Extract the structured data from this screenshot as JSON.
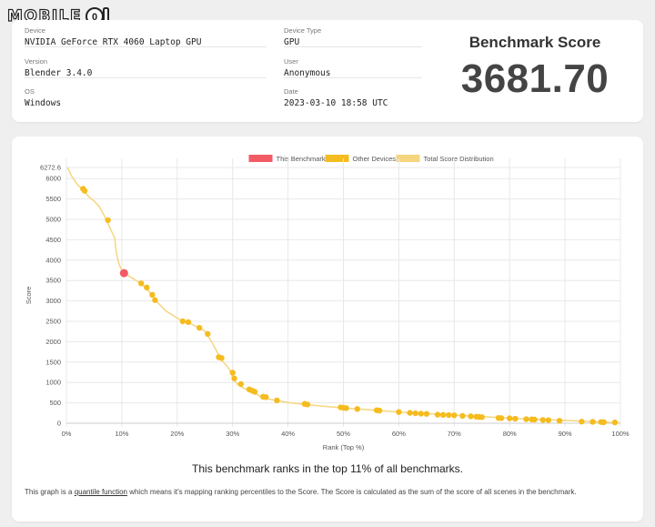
{
  "logo": {
    "text": "MOBILE",
    "icon": "mobile01-logo"
  },
  "info": {
    "device_label": "Device",
    "device_value": "NVIDIA GeForce RTX 4060 Laptop GPU",
    "version_label": "Version",
    "version_value": "Blender 3.4.0",
    "os_label": "OS",
    "os_value": "Windows",
    "device_type_label": "Device Type",
    "device_type_value": "GPU",
    "user_label": "User",
    "user_value": "Anonymous",
    "date_label": "Date",
    "date_value": "2023-03-10 18:58 UTC"
  },
  "score": {
    "title": "Benchmark Score",
    "value": "3681.70"
  },
  "rank_text": "This benchmark ranks in the top 11% of all benchmarks.",
  "footnote": {
    "before": "This graph is a ",
    "link": "quantile function",
    "after": " which means it's mapping ranking percentiles to the Score. The Score is calculated as the sum of the score of all scenes in the benchmark."
  },
  "colors": {
    "this": "#f25b64",
    "other": "#f5bc1f",
    "dist": "#f5d57e"
  },
  "chart_data": {
    "type": "scatter",
    "xlabel": "Rank (Top %)",
    "ylabel": "Score",
    "xlim": [
      0,
      100
    ],
    "ylim": [
      0,
      6272.6
    ],
    "x_ticks": [
      "0%",
      "10%",
      "20%",
      "30%",
      "40%",
      "50%",
      "60%",
      "70%",
      "80%",
      "90%",
      "100%"
    ],
    "y_ticks": [
      "0",
      "500",
      "1000",
      "1500",
      "2000",
      "2500",
      "3000",
      "3500",
      "4000",
      "4500",
      "5000",
      "5500",
      "6000",
      "6272.6"
    ],
    "legend": [
      "This Benchmark",
      "Other Devices",
      "Total Score Distribution"
    ],
    "legend_position": "top",
    "grid": true,
    "this_benchmark": {
      "x": 10.4,
      "y": 3681.7
    },
    "distribution": [
      [
        0.2,
        6272.6
      ],
      [
        1,
        6050
      ],
      [
        2,
        5850
      ],
      [
        3,
        5720
      ],
      [
        4,
        5560
      ],
      [
        5,
        5450
      ],
      [
        6,
        5300
      ],
      [
        7,
        5050
      ],
      [
        8,
        4750
      ],
      [
        8.7,
        4550
      ],
      [
        9,
        4200
      ],
      [
        9.4,
        3950
      ],
      [
        9.8,
        3800
      ],
      [
        10.4,
        3681.7
      ],
      [
        12,
        3550
      ],
      [
        13.5,
        3420
      ],
      [
        14,
        3360
      ],
      [
        15,
        3220
      ],
      [
        16,
        3020
      ],
      [
        18,
        2750
      ],
      [
        20,
        2580
      ],
      [
        21,
        2500
      ],
      [
        22,
        2480
      ],
      [
        23,
        2400
      ],
      [
        24,
        2340
      ],
      [
        25,
        2260
      ],
      [
        26,
        2050
      ],
      [
        27,
        1800
      ],
      [
        28,
        1550
      ],
      [
        29,
        1400
      ],
      [
        29.8,
        1240
      ],
      [
        30,
        1100
      ],
      [
        31,
        940
      ],
      [
        32,
        860
      ],
      [
        33,
        800
      ],
      [
        34,
        740
      ],
      [
        35,
        660
      ],
      [
        37,
        580
      ],
      [
        40,
        510
      ],
      [
        43,
        460
      ],
      [
        47,
        410
      ],
      [
        50,
        375
      ],
      [
        55,
        325
      ],
      [
        60,
        275
      ],
      [
        65,
        235
      ],
      [
        70,
        200
      ],
      [
        75,
        160
      ],
      [
        80,
        125
      ],
      [
        85,
        95
      ],
      [
        90,
        70
      ],
      [
        95,
        40
      ],
      [
        100,
        10
      ]
    ],
    "other_devices": [
      [
        3,
        5750
      ],
      [
        3.3,
        5700
      ],
      [
        7.5,
        4980
      ],
      [
        13.5,
        3430
      ],
      [
        14.5,
        3330
      ],
      [
        15.5,
        3150
      ],
      [
        16,
        3020
      ],
      [
        21,
        2500
      ],
      [
        22,
        2480
      ],
      [
        24,
        2340
      ],
      [
        25.5,
        2190
      ],
      [
        27.5,
        1620
      ],
      [
        28,
        1600
      ],
      [
        30,
        1240
      ],
      [
        30.3,
        1100
      ],
      [
        31.5,
        960
      ],
      [
        33,
        830
      ],
      [
        33.5,
        800
      ],
      [
        34,
        770
      ],
      [
        35.5,
        650
      ],
      [
        36,
        640
      ],
      [
        38,
        560
      ],
      [
        43,
        475
      ],
      [
        43.5,
        460
      ],
      [
        49.5,
        390
      ],
      [
        50,
        380
      ],
      [
        50.5,
        370
      ],
      [
        52.5,
        350
      ],
      [
        56,
        320
      ],
      [
        56.5,
        310
      ],
      [
        60,
        275
      ],
      [
        62,
        255
      ],
      [
        63,
        245
      ],
      [
        64,
        235
      ],
      [
        65,
        230
      ],
      [
        67,
        210
      ],
      [
        68,
        205
      ],
      [
        69,
        200
      ],
      [
        70,
        195
      ],
      [
        71.5,
        180
      ],
      [
        73,
        170
      ],
      [
        74,
        160
      ],
      [
        74.5,
        155
      ],
      [
        75,
        150
      ],
      [
        78,
        130
      ],
      [
        78.5,
        125
      ],
      [
        80,
        120
      ],
      [
        81,
        110
      ],
      [
        83,
        100
      ],
      [
        84,
        95
      ],
      [
        84.5,
        90
      ],
      [
        86,
        80
      ],
      [
        87,
        75
      ],
      [
        89,
        60
      ],
      [
        93,
        40
      ],
      [
        95,
        35
      ],
      [
        96.5,
        30
      ],
      [
        97,
        25
      ],
      [
        99,
        20
      ]
    ]
  }
}
